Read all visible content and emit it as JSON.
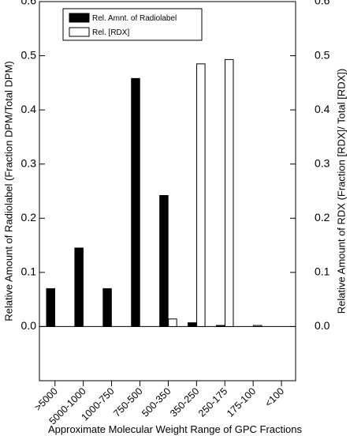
{
  "chart_data": {
    "type": "bar",
    "categories": [
      ">5000",
      "5000-1000",
      "1000-750",
      "750-500",
      "500-350",
      "350-250",
      "250-175",
      "175-100",
      "<100"
    ],
    "series": [
      {
        "name": "Rel. Amnt. of Radiolabel",
        "axis": "left",
        "fill": "#000000",
        "values": [
          0.07,
          0.145,
          0.07,
          0.458,
          0.242,
          0.007,
          0.002,
          null,
          null
        ]
      },
      {
        "name": "Rel. [RDX]",
        "axis": "right",
        "fill": "#ffffff",
        "values": [
          null,
          null,
          null,
          null,
          0.014,
          0.485,
          0.493,
          0.002,
          null
        ]
      }
    ],
    "ylim": [
      -0.1,
      0.6
    ],
    "y_ticks": [
      "0.0",
      "0.1",
      "0.2",
      "0.3",
      "0.4",
      "0.5",
      "0.6"
    ],
    "y_tick_values": [
      0.0,
      0.1,
      0.2,
      0.3,
      0.4,
      0.5,
      0.6
    ],
    "y_ticks_right": [
      "0.0",
      "0.1",
      "0.2",
      "0.3",
      "0.4",
      "0.5",
      "0.6"
    ],
    "xlabel": "Approximate Molecular Weight Range of GPC Fractions",
    "ylabel": "Relative Amount of Radiolabel (Fraction DPM/Total DPM)",
    "ylabel_right": "Relative Amount of RDX (Fraction [RDX]/ Total [RDX])",
    "legend_position": "top-left",
    "grid": false
  }
}
